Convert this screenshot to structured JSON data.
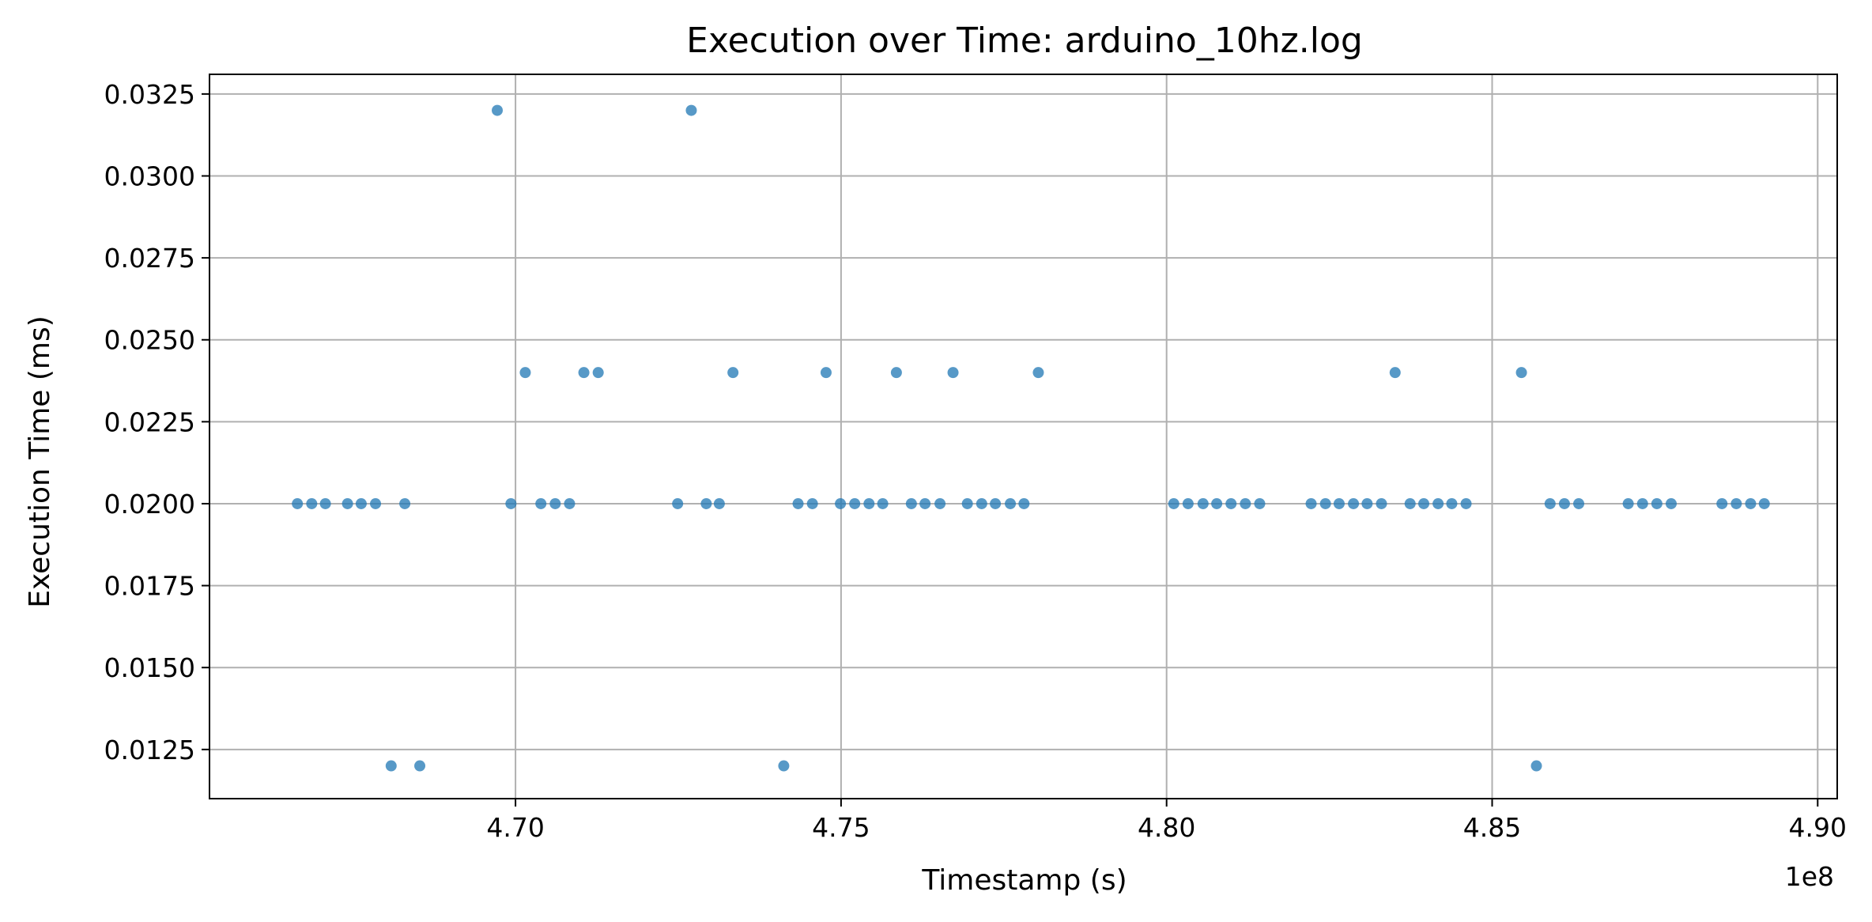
{
  "chart_data": {
    "type": "scatter",
    "title": "Execution over Time: arduino_10hz.log",
    "xlabel": "Timestamp (s)",
    "ylabel": "Execution Time (ms)",
    "x_offset_label": "1e8",
    "xlim": [
      4.653,
      4.903
    ],
    "ylim": [
      0.011,
      0.0331
    ],
    "x_tick_values": [
      4.7,
      4.75,
      4.8,
      4.85,
      4.9
    ],
    "x_tick_labels": [
      "4.70",
      "4.75",
      "4.80",
      "4.85",
      "4.90"
    ],
    "y_tick_values": [
      0.0125,
      0.015,
      0.0175,
      0.02,
      0.0225,
      0.025,
      0.0275,
      0.03,
      0.0325
    ],
    "y_tick_labels": [
      "0.0125",
      "0.0150",
      "0.0175",
      "0.0200",
      "0.0225",
      "0.0250",
      "0.0275",
      "0.0300",
      "0.0325"
    ],
    "grid": true,
    "marker_color": "#1f77b4",
    "marker_opacity": 0.75,
    "x": [
      4.6665,
      4.6687,
      4.6708,
      4.6742,
      4.6763,
      4.6785,
      4.683,
      4.6809,
      4.6853,
      4.6972,
      4.6993,
      4.7015,
      4.7039,
      4.7061,
      4.7083,
      4.7105,
      4.7127,
      4.7249,
      4.727,
      4.7293,
      4.7313,
      4.7334,
      4.7412,
      4.7434,
      4.7456,
      4.7477,
      4.7499,
      4.7521,
      4.7543,
      4.7564,
      4.7585,
      4.7608,
      4.7629,
      4.7652,
      4.7672,
      4.7694,
      4.7716,
      4.7737,
      4.776,
      4.7781,
      4.7803,
      4.8011,
      4.8033,
      4.8056,
      4.8077,
      4.8099,
      4.8121,
      4.8143,
      4.8222,
      4.8244,
      4.8265,
      4.8287,
      4.8308,
      4.833,
      4.8351,
      4.8374,
      4.8395,
      4.8417,
      4.8438,
      4.846,
      4.8545,
      4.8568,
      4.8589,
      4.8611,
      4.8633,
      4.8709,
      4.8731,
      4.8753,
      4.8775,
      4.8853,
      4.8875,
      4.8897,
      4.8918
    ],
    "y": [
      0.02,
      0.02,
      0.02,
      0.02,
      0.02,
      0.02,
      0.02,
      0.012,
      0.012,
      0.032,
      0.02,
      0.024,
      0.02,
      0.02,
      0.02,
      0.024,
      0.024,
      0.02,
      0.032,
      0.02,
      0.02,
      0.024,
      0.012,
      0.02,
      0.02,
      0.024,
      0.02,
      0.02,
      0.02,
      0.02,
      0.024,
      0.02,
      0.02,
      0.02,
      0.024,
      0.02,
      0.02,
      0.02,
      0.02,
      0.02,
      0.024,
      0.02,
      0.02,
      0.02,
      0.02,
      0.02,
      0.02,
      0.02,
      0.02,
      0.02,
      0.02,
      0.02,
      0.02,
      0.02,
      0.024,
      0.02,
      0.02,
      0.02,
      0.02,
      0.02,
      0.024,
      0.012,
      0.02,
      0.02,
      0.02,
      0.02,
      0.02,
      0.02,
      0.02,
      0.02,
      0.02,
      0.02,
      0.02
    ]
  }
}
